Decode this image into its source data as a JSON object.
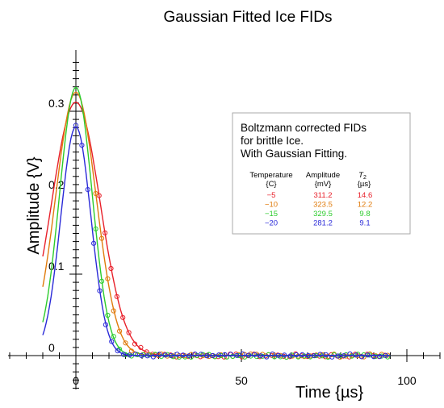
{
  "chart_data": {
    "type": "line",
    "title": "Gaussian Fitted Ice FIDs",
    "xlabel": "Time {µs}",
    "ylabel": "Amplitude {V}",
    "x_ticks": [
      "0",
      "50",
      "100"
    ],
    "y_ticks": [
      "0",
      "0.1",
      "0.2",
      "0.3"
    ],
    "xlim": [
      -20,
      110
    ],
    "ylim": [
      -0.04,
      0.37
    ],
    "grid": false,
    "legend_placement": "top-right",
    "legend_title_lines": [
      "Boltzmann corrected FIDs",
      "for brittle Ice.",
      "With Gaussian Fitting."
    ],
    "table": {
      "headers": [
        "Temperature",
        "Amplitude",
        "T2"
      ],
      "units": [
        "{C}",
        "{mV}",
        "{µs}"
      ],
      "rows": [
        {
          "temperature": "−5",
          "amplitude": "311.2",
          "t2": "14.6"
        },
        {
          "temperature": "−10",
          "amplitude": "323.5",
          "t2": "12.2"
        },
        {
          "temperature": "−15",
          "amplitude": "329.5",
          "t2": "9.8"
        },
        {
          "temperature": "−20",
          "amplitude": "281.2",
          "t2": "9.1"
        }
      ]
    },
    "series": [
      {
        "color": "#e8202a",
        "amplitude": 0.3112,
        "t2": 14.6,
        "x_start": -10,
        "marker_start": 7
      },
      {
        "color": "#e07b0c",
        "amplitude": 0.3235,
        "t2": 12.2,
        "x_start": -10,
        "marker_start": 6
      },
      {
        "color": "#2ccc2c",
        "amplitude": 0.3295,
        "t2": 9.8,
        "x_start": -10,
        "marker_start": 6
      },
      {
        "color": "#2a2ad8",
        "amplitude": 0.2812,
        "t2": 9.1,
        "x_start": -10,
        "marker_start": 0
      }
    ],
    "marker_end": 95,
    "marker_step": 1.8
  }
}
